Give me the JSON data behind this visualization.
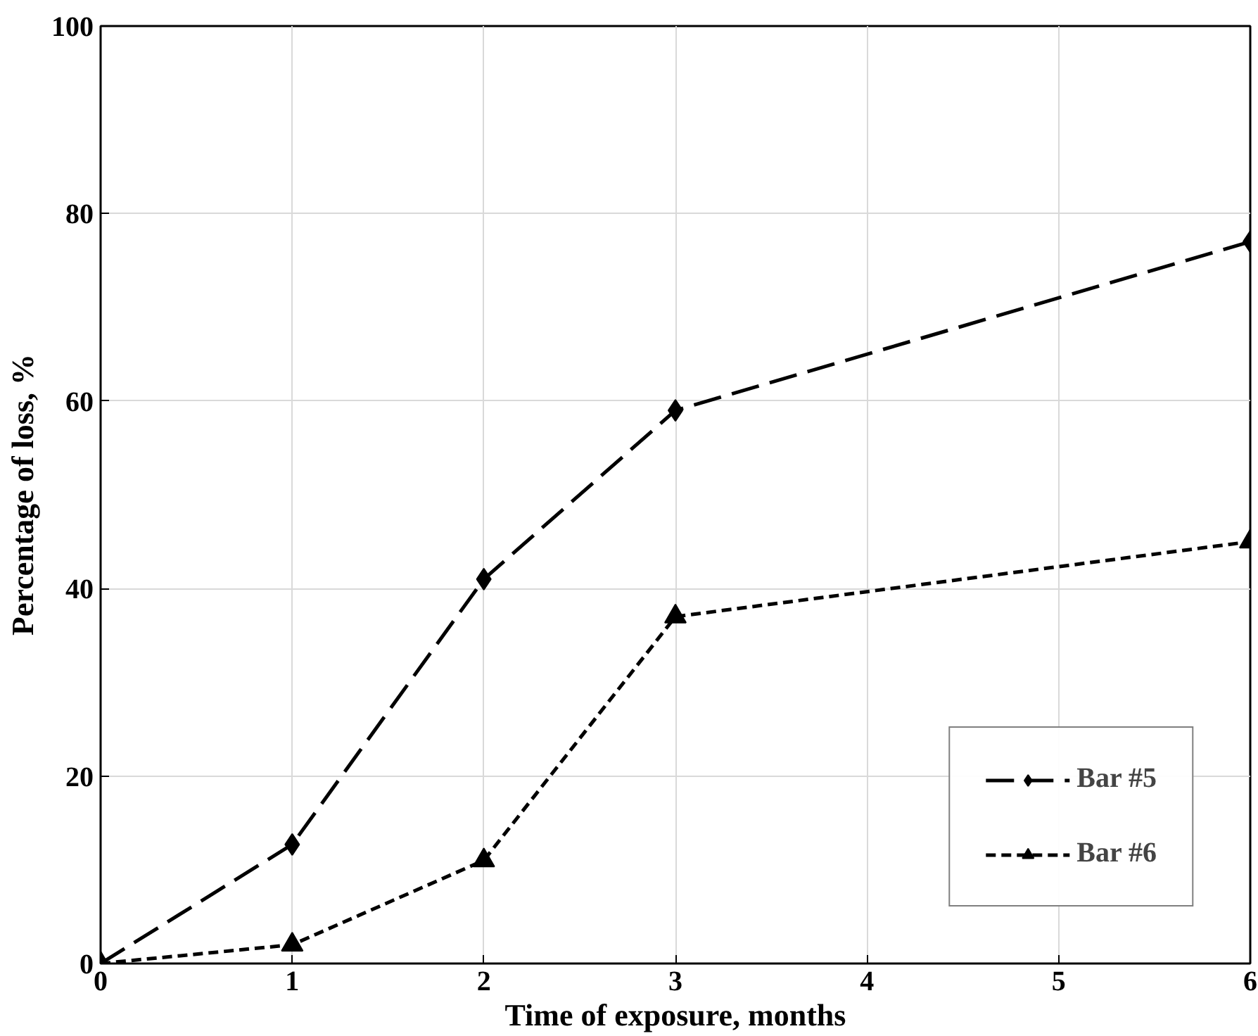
{
  "chart_data": {
    "type": "line",
    "xlabel": "Time of exposure, months",
    "ylabel": "Percentage of loss, %",
    "x": [
      0,
      1,
      2,
      3,
      6
    ],
    "series": [
      {
        "name": "Bar #5",
        "color": "#000000",
        "values": [
          0,
          12.7,
          41,
          59,
          77
        ],
        "marker": "diamond",
        "line_style": "dashed"
      },
      {
        "name": "Bar #6",
        "color": "#000000",
        "values": [
          0,
          2,
          11,
          37,
          45
        ],
        "marker": "triangle",
        "line_style": "dotted"
      }
    ],
    "xlim": [
      0,
      6
    ],
    "xticks": [
      0,
      1,
      2,
      3,
      4,
      5,
      6
    ],
    "ylim": [
      0,
      100
    ],
    "yticks": [
      0,
      20,
      40,
      60,
      80,
      100
    ],
    "grid": true,
    "legend": "bottom right"
  }
}
